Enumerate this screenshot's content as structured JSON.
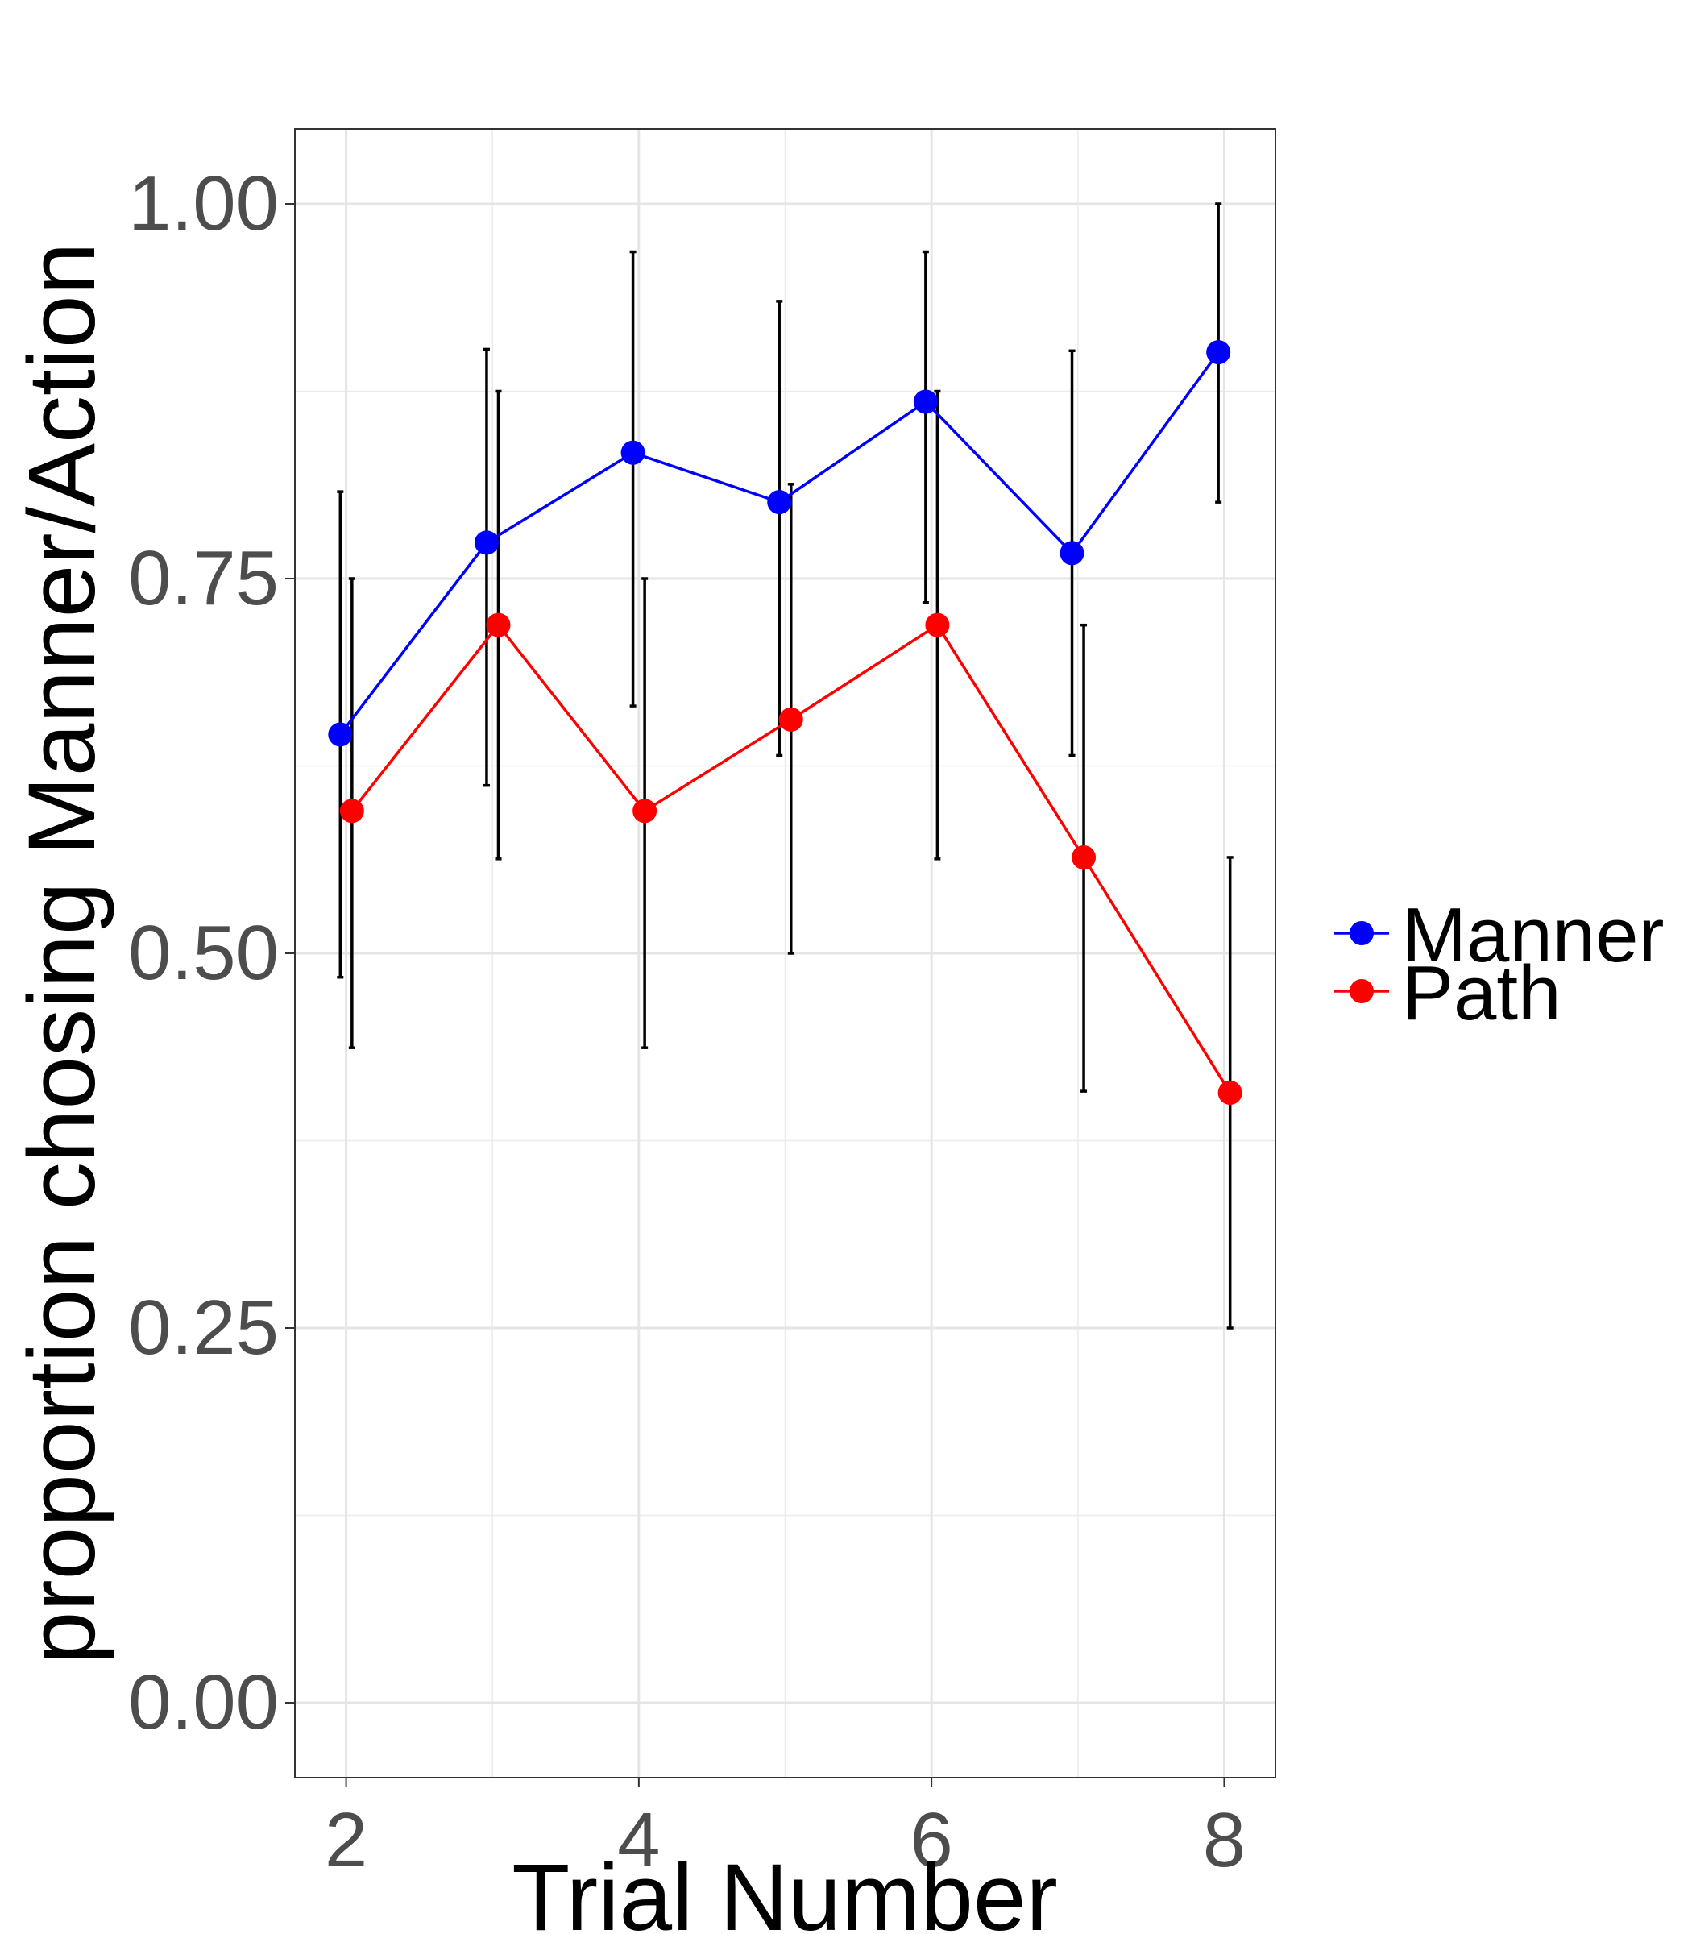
{
  "chart_data": {
    "type": "line",
    "xlabel": "Trial Number",
    "ylabel": "proportion chosing Manner/Action",
    "xlim": [
      1.65,
      8.35
    ],
    "ylim": [
      -0.05,
      1.05
    ],
    "x_ticks": [
      2,
      4,
      6,
      8
    ],
    "x_tick_labels": [
      "2",
      "4",
      "6",
      "8"
    ],
    "y_ticks": [
      0,
      0.25,
      0.5,
      0.75,
      1
    ],
    "y_tick_labels": [
      "0.00",
      "0.25",
      "0.50",
      "0.75",
      "1.00"
    ],
    "grid": true,
    "legend_position": "right",
    "series": [
      {
        "name": "Manner",
        "color": "#0000ff",
        "x": [
          2,
          3,
          4,
          5,
          6,
          7,
          8
        ],
        "y": [
          0.646,
          0.774,
          0.834,
          0.801,
          0.868,
          0.767,
          0.901
        ],
        "error_low": [
          0.484,
          0.612,
          0.665,
          0.632,
          0.734,
          0.632,
          0.801
        ],
        "error_high": [
          0.808,
          0.903,
          0.968,
          0.935,
          0.968,
          0.902,
          1.0
        ]
      },
      {
        "name": "Path",
        "color": "#ff0000",
        "x": [
          2,
          3,
          4,
          5,
          6,
          7,
          8
        ],
        "y": [
          0.595,
          0.719,
          0.595,
          0.656,
          0.719,
          0.564,
          0.407
        ],
        "error_low": [
          0.437,
          0.563,
          0.437,
          0.5,
          0.563,
          0.408,
          0.25
        ],
        "error_high": [
          0.75,
          0.875,
          0.75,
          0.813,
          0.875,
          0.719,
          0.564
        ]
      }
    ]
  }
}
